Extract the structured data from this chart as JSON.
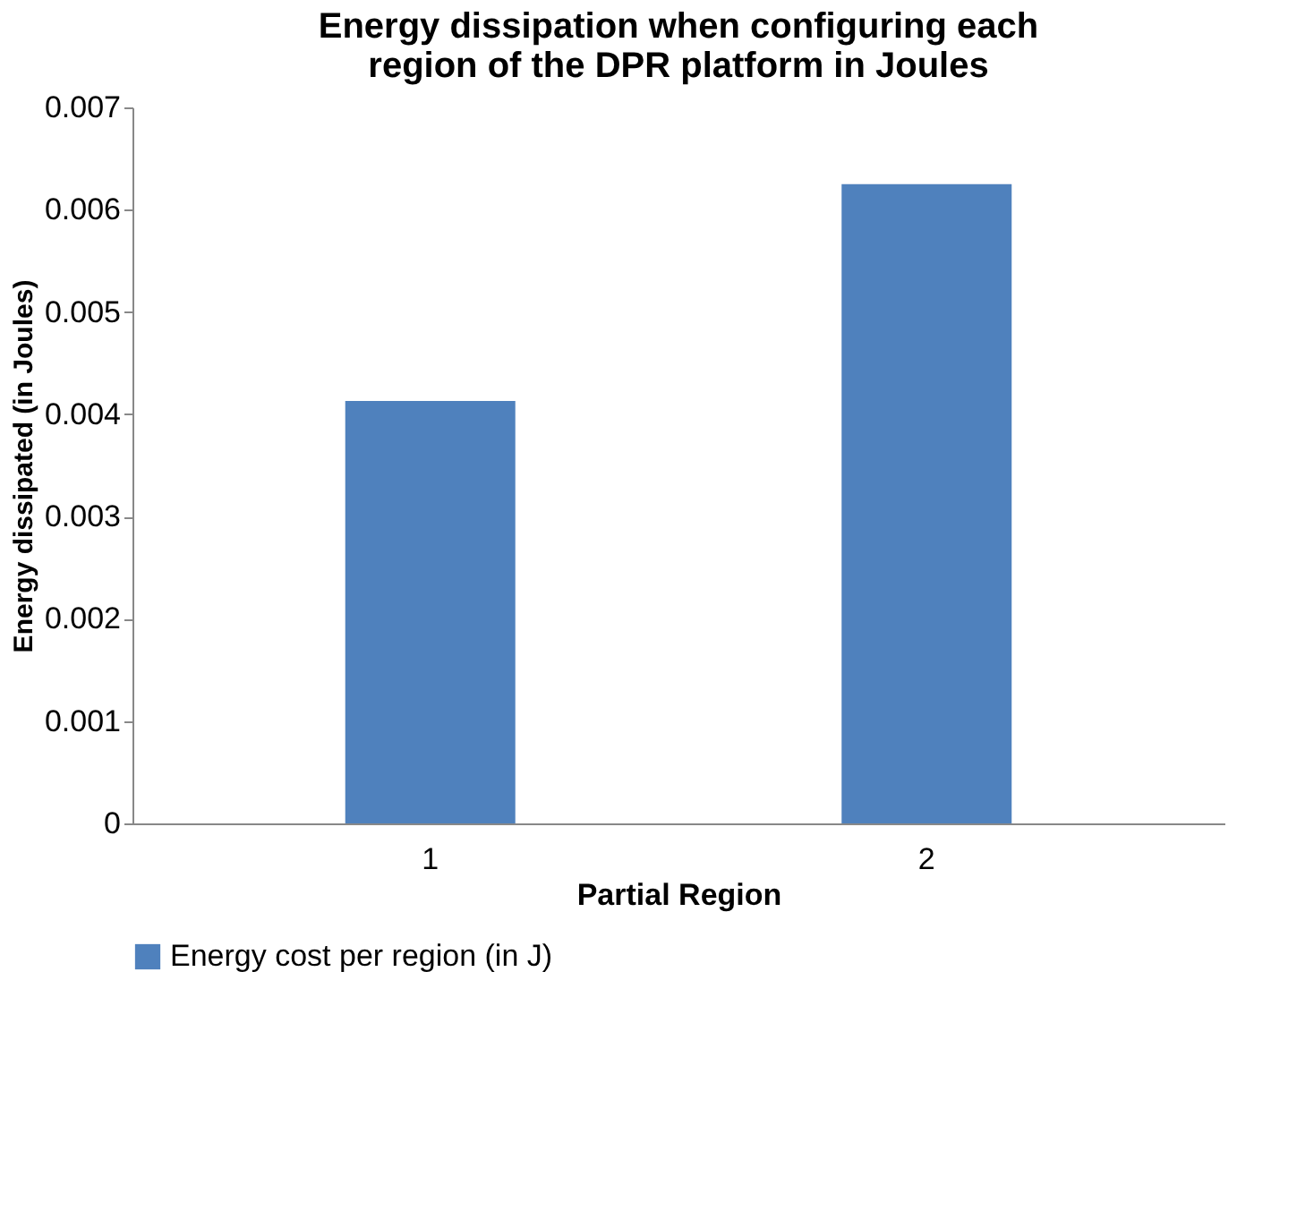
{
  "chart_data": {
    "type": "bar",
    "title": "Energy dissipation when configuring each region of the DPR platform in Joules",
    "xlabel": "Partial Region",
    "ylabel": "Energy dissipated (in Joules)",
    "categories": [
      "1",
      "2"
    ],
    "series": [
      {
        "name": "Energy cost per region (in J)",
        "color": "#4f81bd",
        "values": [
          0.00413,
          0.00625
        ]
      }
    ],
    "ylim": [
      0,
      0.007
    ],
    "yticks": [
      0,
      0.001,
      0.002,
      0.003,
      0.004,
      0.005,
      0.006,
      0.007
    ],
    "grid": false,
    "legend": "bottom"
  }
}
